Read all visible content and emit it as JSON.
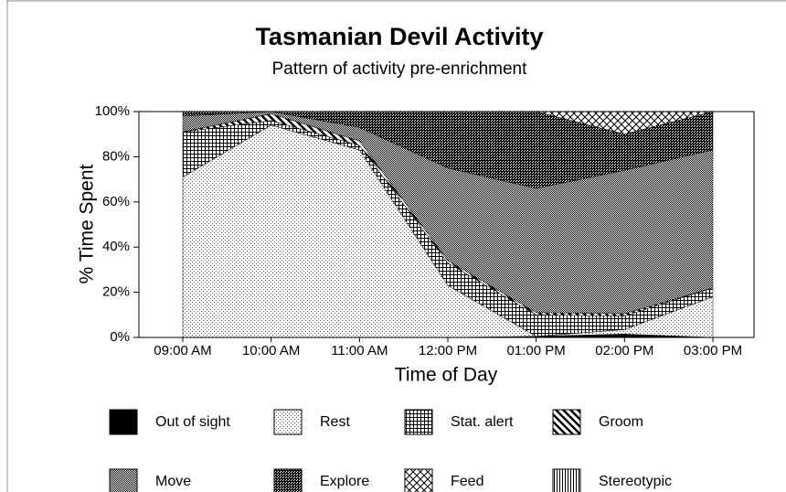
{
  "chart_data": {
    "type": "stacked_area",
    "title": "Tasmanian Devil Activity",
    "subtitle": "Pattern of activity pre-enrichment",
    "x_label": "Time of Day",
    "y_label": "% Time Spent",
    "categories": [
      "09:00 AM",
      "10:00 AM",
      "11:00 AM",
      "12:00 PM",
      "01:00 PM",
      "02:00 PM",
      "03:00 PM"
    ],
    "ylim": [
      0,
      100
    ],
    "yticks": [
      {
        "value": 0,
        "label": "0%"
      },
      {
        "value": 20,
        "label": "20%"
      },
      {
        "value": 40,
        "label": "40%"
      },
      {
        "value": 60,
        "label": "60%"
      },
      {
        "value": 80,
        "label": "80%"
      },
      {
        "value": 100,
        "label": "100%"
      }
    ],
    "series": [
      {
        "name": "Out of sight",
        "pattern": "solid",
        "color": "#000000",
        "values": [
          0,
          0,
          0,
          0,
          0.5,
          1.5,
          0
        ]
      },
      {
        "name": "Rest",
        "pattern": "dots",
        "color": "#000000",
        "values": [
          71,
          94,
          83,
          23,
          0,
          2,
          18
        ]
      },
      {
        "name": "Stat. alert",
        "pattern": "grid",
        "color": "#000000",
        "values": [
          20,
          2,
          2,
          10,
          9.5,
          6,
          4
        ]
      },
      {
        "name": "Groom",
        "pattern": "stripes",
        "color": "#000000",
        "values": [
          0,
          3,
          2,
          1,
          1,
          1,
          0
        ]
      },
      {
        "name": "Move",
        "pattern": "checker",
        "color": "#000000",
        "values": [
          7,
          1,
          6,
          41,
          55,
          63.5,
          61
        ]
      },
      {
        "name": "Explore",
        "pattern": "dense",
        "color": "#000000",
        "values": [
          2,
          0,
          7,
          25,
          34,
          16,
          17
        ]
      },
      {
        "name": "Feed",
        "pattern": "cross",
        "color": "#000000",
        "values": [
          0,
          0,
          0,
          0,
          0,
          10,
          0
        ]
      },
      {
        "name": "Stereotypic",
        "pattern": "vertical",
        "color": "#000000",
        "values": [
          0,
          0,
          0,
          0,
          0,
          0,
          0
        ]
      }
    ]
  }
}
